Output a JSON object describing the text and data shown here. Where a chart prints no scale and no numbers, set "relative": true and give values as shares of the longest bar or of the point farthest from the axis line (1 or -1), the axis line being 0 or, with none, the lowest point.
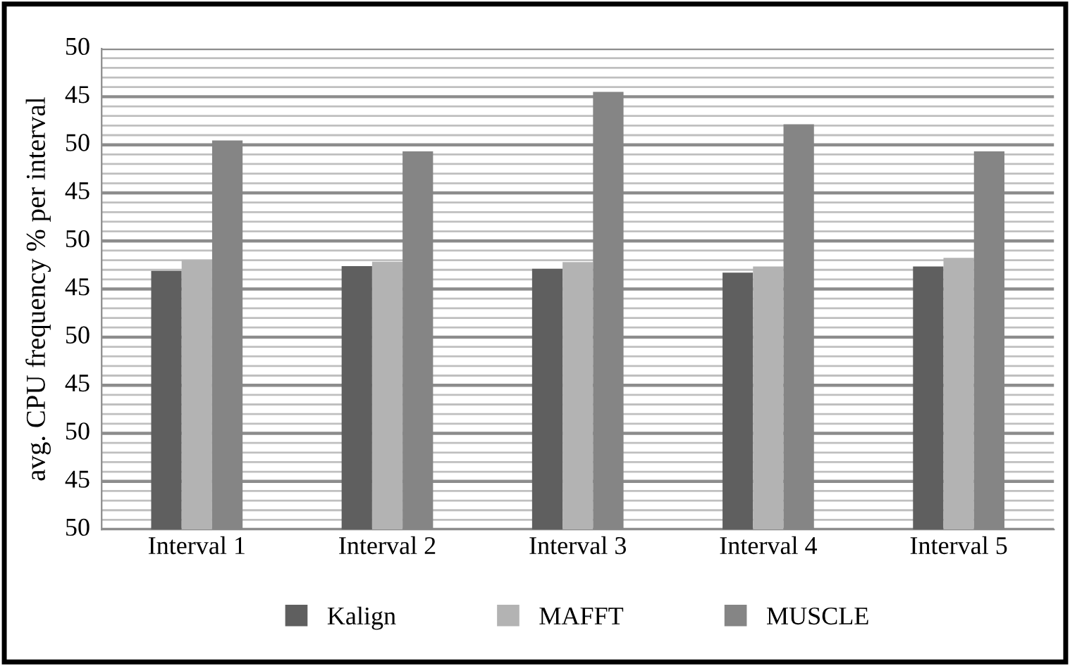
{
  "chart_data": {
    "type": "bar",
    "ylabel": "avg. CPU frequency % per interval",
    "relative": true,
    "categories": [
      "Interval 1",
      "Interval 2",
      "Interval 3",
      "Interval 4",
      "Interval 5"
    ],
    "series": [
      {
        "name": "Kalign",
        "color": "#5f5f5f",
        "values": [
          0.591,
          0.602,
          0.596,
          0.587,
          0.601
        ]
      },
      {
        "name": "MAFFT",
        "color": "#b3b3b3",
        "values": [
          0.616,
          0.612,
          0.611,
          0.601,
          0.621
        ]
      },
      {
        "name": "MUSCLE",
        "color": "#858585",
        "values": [
          0.889,
          0.864,
          1,
          0.926,
          0.864
        ]
      }
    ],
    "annotations": [
      "50",
      "45",
      "50",
      "45",
      "50",
      "45",
      "50",
      "45",
      "50",
      "45",
      "50"
    ],
    "grid": "y",
    "legend": "bottom"
  }
}
